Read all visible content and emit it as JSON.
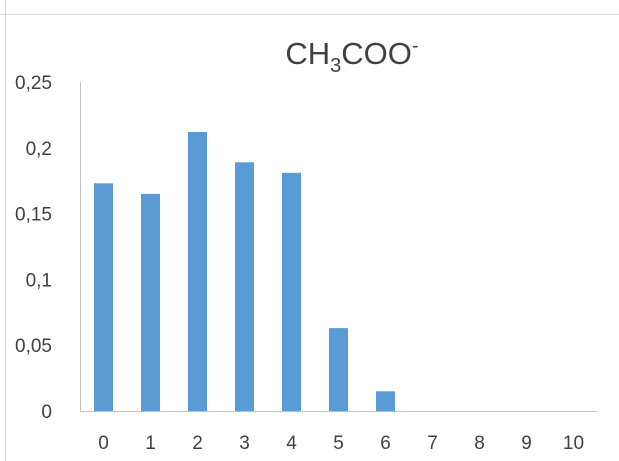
{
  "chart_data": {
    "type": "bar",
    "title": {
      "main": "CH",
      "sub1": "3",
      "mid": "COO",
      "sup": "-"
    },
    "categories": [
      "0",
      "1",
      "2",
      "3",
      "4",
      "5",
      "6",
      "7",
      "8",
      "9",
      "10"
    ],
    "values": [
      0.173,
      0.165,
      0.212,
      0.189,
      0.181,
      0.063,
      0.015,
      0,
      0,
      0,
      0
    ],
    "ylim": [
      0,
      0.25
    ],
    "yticks": [
      "0",
      "0,05",
      "0,1",
      "0,15",
      "0,2",
      "0,25"
    ],
    "ytick_values": [
      0,
      0.05,
      0.1,
      0.15,
      0.2,
      0.25
    ],
    "xlabel": "",
    "ylabel": "",
    "grid": false,
    "legend": "none",
    "bar_color": "#5b9bd5",
    "axis_color": "#bfbfbf",
    "border_color": "#d9d9d9",
    "text_color": "#404040"
  }
}
